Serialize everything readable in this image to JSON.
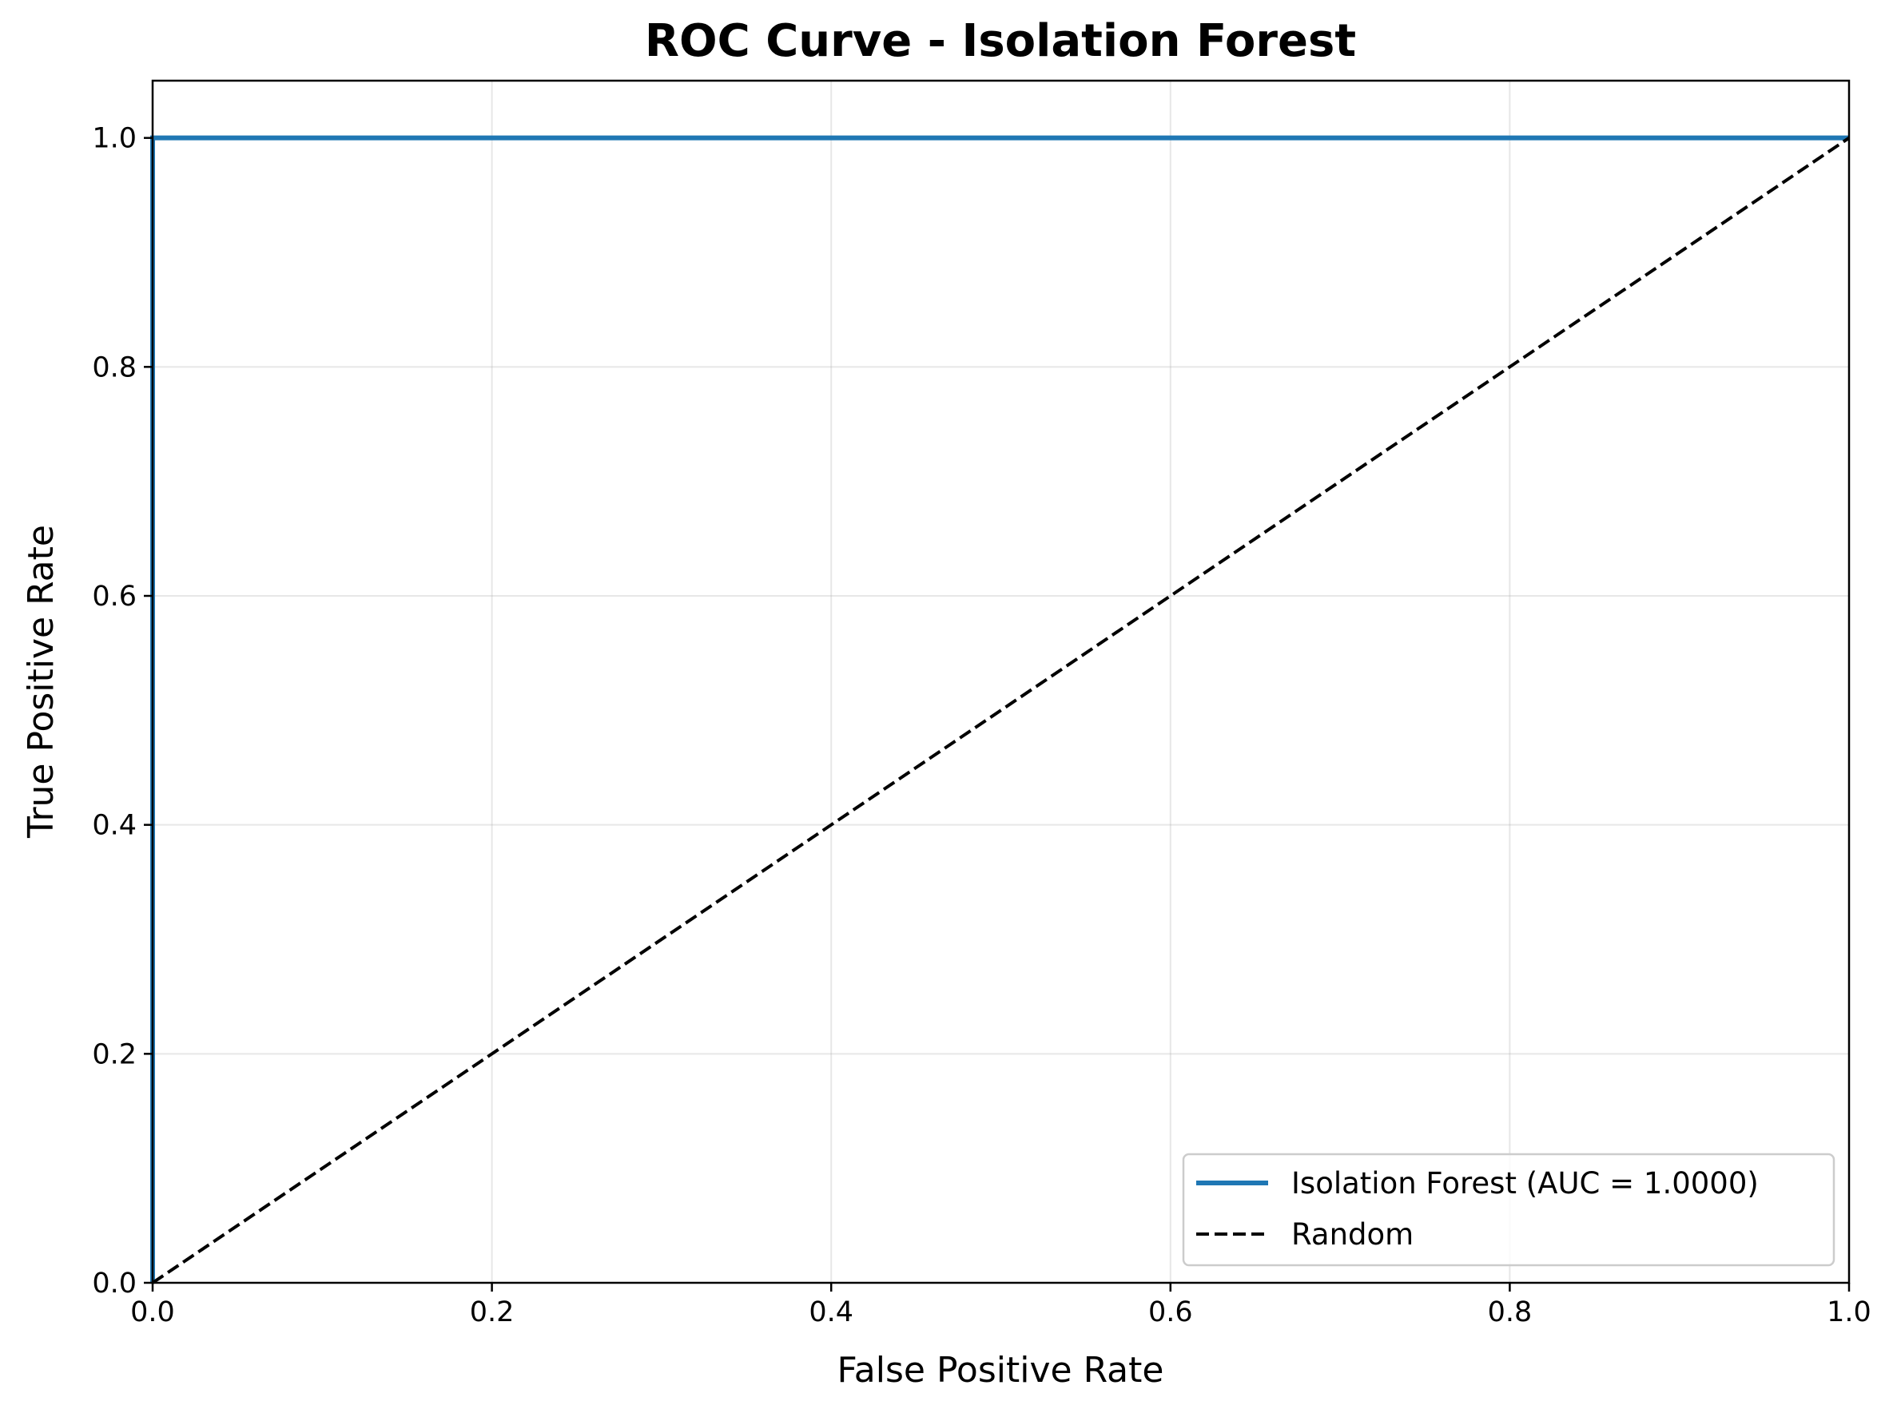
{
  "chart_data": {
    "type": "line",
    "title": "ROC Curve - Isolation Forest",
    "xlabel": "False Positive Rate",
    "ylabel": "True Positive Rate",
    "xlim": [
      0.0,
      1.0
    ],
    "ylim": [
      0.0,
      1.05
    ],
    "xticks": [
      0.0,
      0.2,
      0.4,
      0.6,
      0.8,
      1.0
    ],
    "yticks": [
      0.0,
      0.2,
      0.4,
      0.6,
      0.8,
      1.0
    ],
    "xtick_labels": [
      "0.0",
      "0.2",
      "0.4",
      "0.6",
      "0.8",
      "1.0"
    ],
    "ytick_labels": [
      "0.0",
      "0.2",
      "0.4",
      "0.6",
      "0.8",
      "1.0"
    ],
    "grid": true,
    "legend_position": "bottom-right",
    "series": [
      {
        "name": "Isolation Forest (AUC = 1.0000)",
        "x": [
          0.0,
          0.0,
          1.0
        ],
        "y": [
          0.0,
          1.0,
          1.0
        ],
        "color": "#1f77b4",
        "style": "solid"
      },
      {
        "name": "Random",
        "x": [
          0.0,
          1.0
        ],
        "y": [
          0.0,
          1.0
        ],
        "color": "#000000",
        "style": "dashed"
      }
    ]
  }
}
